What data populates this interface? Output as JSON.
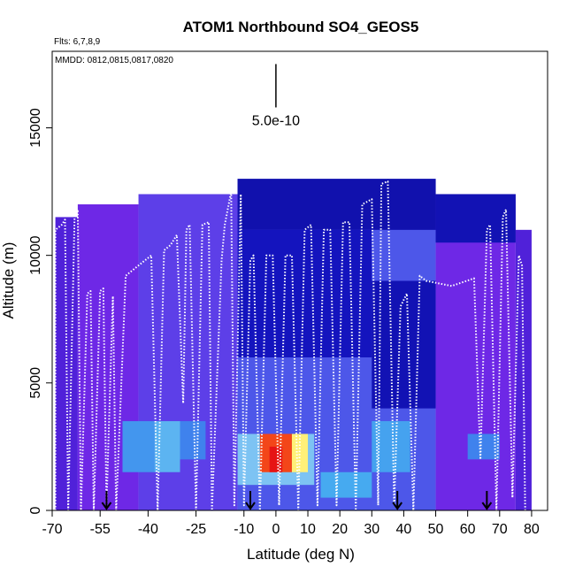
{
  "chart_data": {
    "type": "heatmap",
    "title": "ATOM1 Northbound SO4_GEOS5",
    "flights_note": "Flts: 6,7,8,9",
    "dates_note": "MMDD: 0812,0815,0817,0820",
    "xlabel": "Latitude (deg N)",
    "ylabel": "Altitude (m)",
    "xlim": [
      -70,
      85
    ],
    "ylim": [
      0,
      18000
    ],
    "x_ticks": [
      -70,
      -55,
      -40,
      -25,
      -10,
      0,
      10,
      20,
      30,
      40,
      50,
      60,
      70,
      80
    ],
    "x_tick_labels": [
      "-70",
      "-55",
      "-40",
      "-25",
      "-10",
      "0",
      "10",
      "20",
      "30",
      "40",
      "50",
      "60",
      "70",
      "80"
    ],
    "y_ticks": [
      0,
      5000,
      10000,
      15000
    ],
    "y_tick_labels": [
      "0",
      "5000",
      "10000",
      "15000"
    ],
    "scale_bar_label": "5.0e-10",
    "scale_bar_x": 0,
    "scale_bar_y_range": [
      15800,
      17500
    ],
    "arrow_latitudes": [
      -53,
      -8,
      38,
      66
    ],
    "colors": {
      "background_field": "#7b2be6",
      "low": "#1010b0",
      "mid": "#3aa0f0",
      "high": "#ff2010",
      "track": "#ffffff"
    },
    "blocks": [
      {
        "x0": -69,
        "x1": -62,
        "y0": 0,
        "y1": 11500,
        "v": 0.25
      },
      {
        "x0": -62,
        "x1": -43,
        "y0": 0,
        "y1": 12000,
        "v": 0.3
      },
      {
        "x0": -43,
        "x1": -12,
        "y0": 0,
        "y1": 12400,
        "v": 0.35
      },
      {
        "x0": -12,
        "x1": 50,
        "y0": 0,
        "y1": 13000,
        "v": 0.4
      },
      {
        "x0": 50,
        "x1": 75,
        "y0": 0,
        "y1": 12400,
        "v": 0.3
      },
      {
        "x0": 75,
        "x1": 80,
        "y0": 0,
        "y1": 11000,
        "v": 0.25
      },
      {
        "x0": -12,
        "x1": 50,
        "y0": 11000,
        "y1": 13000,
        "v": 0.1
      },
      {
        "x0": 50,
        "x1": 75,
        "y0": 10500,
        "y1": 12400,
        "v": 0.12
      },
      {
        "x0": -12,
        "x1": 30,
        "y0": 6000,
        "y1": 11000,
        "v": 0.15
      },
      {
        "x0": 30,
        "x1": 50,
        "y0": 4000,
        "y1": 9000,
        "v": 0.12
      },
      {
        "x0": -48,
        "x1": -38,
        "y0": 1500,
        "y1": 3500,
        "v": 0.55
      },
      {
        "x0": -38,
        "x1": -30,
        "y0": 1500,
        "y1": 3500,
        "v": 0.62
      },
      {
        "x0": -30,
        "x1": -22,
        "y0": 2000,
        "y1": 3500,
        "v": 0.5
      },
      {
        "x0": -12,
        "x1": 12,
        "y0": 1000,
        "y1": 3000,
        "v": 0.65
      },
      {
        "x0": -5,
        "x1": 5,
        "y0": 1500,
        "y1": 3000,
        "v": 0.95
      },
      {
        "x0": -2,
        "x1": 2,
        "y0": 1500,
        "y1": 2500,
        "v": 1.0
      },
      {
        "x0": 5,
        "x1": 10,
        "y0": 1500,
        "y1": 3000,
        "v": 0.8
      },
      {
        "x0": 14,
        "x1": 30,
        "y0": 500,
        "y1": 1500,
        "v": 0.6
      },
      {
        "x0": 30,
        "x1": 42,
        "y0": 1500,
        "y1": 3500,
        "v": 0.58
      },
      {
        "x0": 60,
        "x1": 70,
        "y0": 2000,
        "y1": 3000,
        "v": 0.5
      }
    ],
    "track_points": [
      [
        -69,
        0
      ],
      [
        -69,
        11000
      ],
      [
        -67,
        11200
      ],
      [
        -66,
        11400
      ],
      [
        -65,
        0
      ],
      [
        -63,
        11500
      ],
      [
        -62,
        11800
      ],
      [
        -61,
        0
      ],
      [
        -59,
        8500
      ],
      [
        -58,
        8600
      ],
      [
        -57,
        0
      ],
      [
        -55,
        8600
      ],
      [
        -54,
        8700
      ],
      [
        -53,
        200
      ],
      [
        -51,
        8400
      ],
      [
        -50,
        0
      ],
      [
        -47,
        9200
      ],
      [
        -43,
        9600
      ],
      [
        -39,
        10000
      ],
      [
        -37,
        0
      ],
      [
        -35,
        10200
      ],
      [
        -33,
        10400
      ],
      [
        -31,
        10800
      ],
      [
        -29,
        4200
      ],
      [
        -28,
        11000
      ],
      [
        -27,
        11200
      ],
      [
        -25,
        0
      ],
      [
        -23,
        11200
      ],
      [
        -21,
        11300
      ],
      [
        -20,
        0
      ],
      [
        -17,
        9800
      ],
      [
        -16,
        11200
      ],
      [
        -14,
        12500
      ],
      [
        -13,
        200
      ],
      [
        -11,
        12400
      ],
      [
        -10,
        200
      ],
      [
        -8,
        9800
      ],
      [
        -7,
        10000
      ],
      [
        -5,
        0
      ],
      [
        -3,
        10000
      ],
      [
        -1,
        10000
      ],
      [
        1,
        200
      ],
      [
        3,
        10000
      ],
      [
        5,
        10000
      ],
      [
        7,
        0
      ],
      [
        9,
        11000
      ],
      [
        11,
        11200
      ],
      [
        13,
        200
      ],
      [
        15,
        11000
      ],
      [
        17,
        11000
      ],
      [
        19,
        200
      ],
      [
        21,
        11300
      ],
      [
        23,
        11300
      ],
      [
        25,
        0
      ],
      [
        27,
        12000
      ],
      [
        30,
        12200
      ],
      [
        32,
        200
      ],
      [
        33,
        12800
      ],
      [
        35,
        12900
      ],
      [
        37,
        200
      ],
      [
        39,
        8000
      ],
      [
        41,
        8500
      ],
      [
        43,
        0
      ],
      [
        45,
        9200
      ],
      [
        47,
        9000
      ],
      [
        55,
        8800
      ],
      [
        62,
        9100
      ],
      [
        64,
        2000
      ],
      [
        66,
        11000
      ],
      [
        67,
        11200
      ],
      [
        69,
        0
      ],
      [
        71,
        11500
      ],
      [
        72,
        11800
      ],
      [
        74,
        500
      ],
      [
        76,
        10000
      ],
      [
        77,
        9600
      ],
      [
        78,
        0
      ]
    ]
  }
}
